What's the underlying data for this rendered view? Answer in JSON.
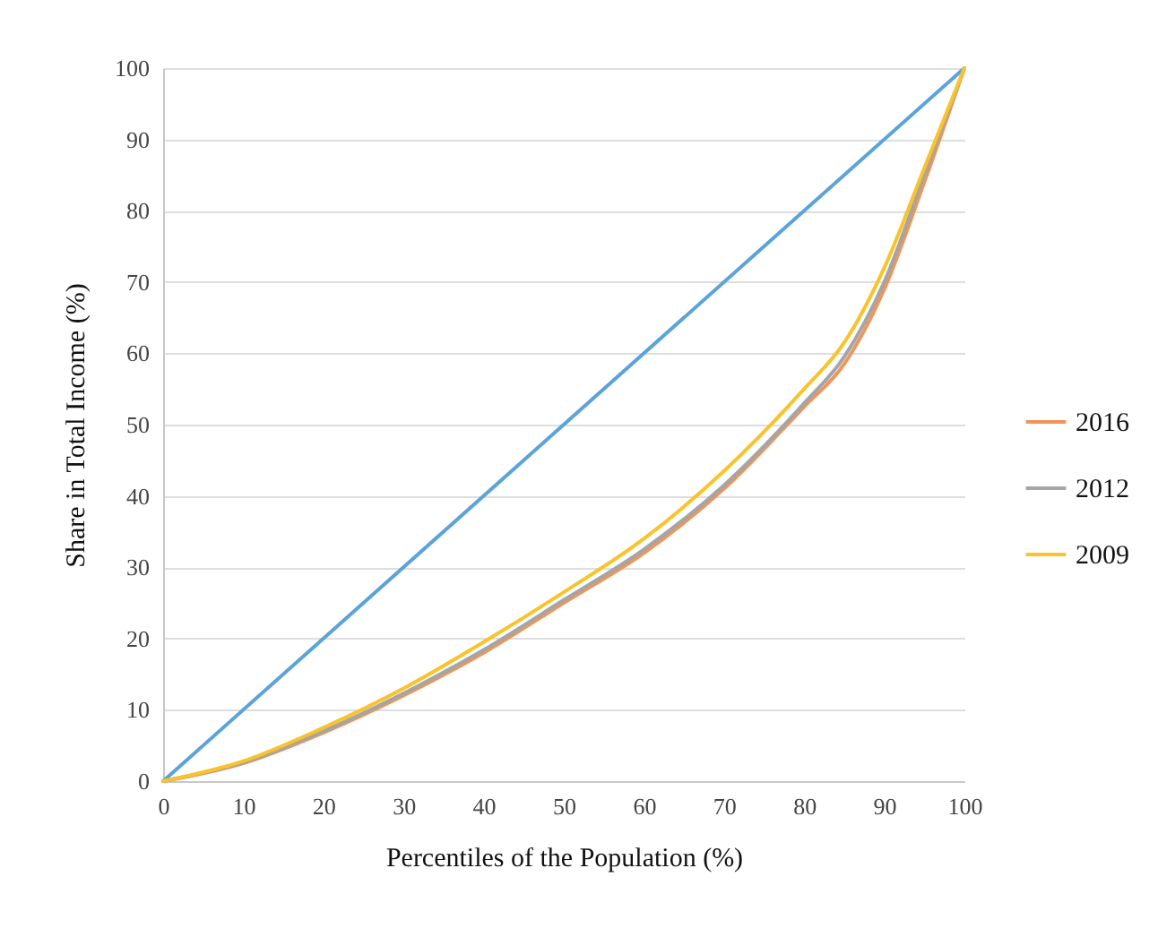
{
  "chart_data": {
    "type": "line",
    "xlabel": "Percentiles of the Population (%)",
    "ylabel": "Share in Total Income (%)",
    "x": [
      0,
      10,
      20,
      30,
      40,
      50,
      60,
      70,
      80,
      85,
      90,
      95,
      100
    ],
    "series": [
      {
        "color": "#5ba3d9",
        "x": [
          0,
          100
        ],
        "values": [
          0,
          100
        ]
      },
      {
        "name": "2016",
        "color": "#f0955a",
        "values": [
          0,
          2.5,
          6.8,
          12,
          18,
          25,
          32,
          41,
          52.5,
          58.5,
          69,
          84,
          100
        ]
      },
      {
        "name": "2012",
        "color": "#a5a5a5",
        "values": [
          0,
          2.6,
          7,
          12.3,
          18.4,
          25.4,
          32.5,
          41.5,
          53,
          59.5,
          70,
          85,
          100
        ]
      },
      {
        "name": "2009",
        "color": "#fbc32a",
        "values": [
          0,
          2.8,
          7.5,
          13,
          19.5,
          26.5,
          34,
          43.5,
          55,
          61.5,
          72,
          86,
          100
        ]
      }
    ],
    "xlim": [
      0,
      100
    ],
    "ylim": [
      0,
      100
    ],
    "xticks": [
      0,
      10,
      20,
      30,
      40,
      50,
      60,
      70,
      80,
      90,
      100
    ],
    "yticks": [
      0,
      10,
      20,
      30,
      40,
      50,
      60,
      70,
      80,
      90,
      100
    ],
    "grid": "y",
    "legend": "right"
  }
}
